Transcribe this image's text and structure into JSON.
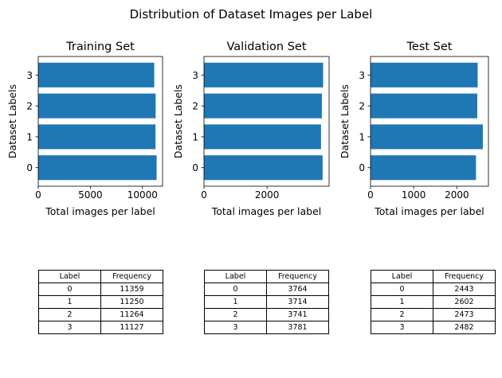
{
  "figure": {
    "title": "Distribution of Dataset Images per Label"
  },
  "chart_data": [
    {
      "type": "bar",
      "orientation": "horizontal",
      "title": "Training Set",
      "xlabel": "Total images per label",
      "ylabel": "Dataset Labels",
      "categories": [
        "0",
        "1",
        "2",
        "3"
      ],
      "values": [
        11359,
        11250,
        11264,
        11127
      ],
      "xlim": [
        0,
        11927
      ],
      "xticks": [
        0,
        5000,
        10000
      ],
      "color": "#1f77b4"
    },
    {
      "type": "bar",
      "orientation": "horizontal",
      "title": "Validation Set",
      "xlabel": "Total images per label",
      "ylabel": "Dataset Labels",
      "categories": [
        "0",
        "1",
        "2",
        "3"
      ],
      "values": [
        3764,
        3714,
        3741,
        3781
      ],
      "xlim": [
        0,
        3970
      ],
      "xticks": [
        0,
        2000
      ],
      "color": "#1f77b4"
    },
    {
      "type": "bar",
      "orientation": "horizontal",
      "title": "Test Set",
      "xlabel": "Total images per label",
      "ylabel": "Dataset Labels",
      "categories": [
        "0",
        "1",
        "2",
        "3"
      ],
      "values": [
        2443,
        2602,
        2473,
        2482
      ],
      "xlim": [
        0,
        2732
      ],
      "xticks": [
        0,
        1000,
        2000
      ],
      "color": "#1f77b4"
    }
  ],
  "tables": [
    {
      "columns": [
        "Label",
        "Frequency"
      ],
      "rows": [
        [
          "0",
          "11359"
        ],
        [
          "1",
          "11250"
        ],
        [
          "2",
          "11264"
        ],
        [
          "3",
          "11127"
        ]
      ]
    },
    {
      "columns": [
        "Label",
        "Frequency"
      ],
      "rows": [
        [
          "0",
          "3764"
        ],
        [
          "1",
          "3714"
        ],
        [
          "2",
          "3741"
        ],
        [
          "3",
          "3781"
        ]
      ]
    },
    {
      "columns": [
        "Label",
        "Frequency"
      ],
      "rows": [
        [
          "0",
          "2443"
        ],
        [
          "1",
          "2602"
        ],
        [
          "2",
          "2473"
        ],
        [
          "3",
          "2482"
        ]
      ]
    }
  ]
}
